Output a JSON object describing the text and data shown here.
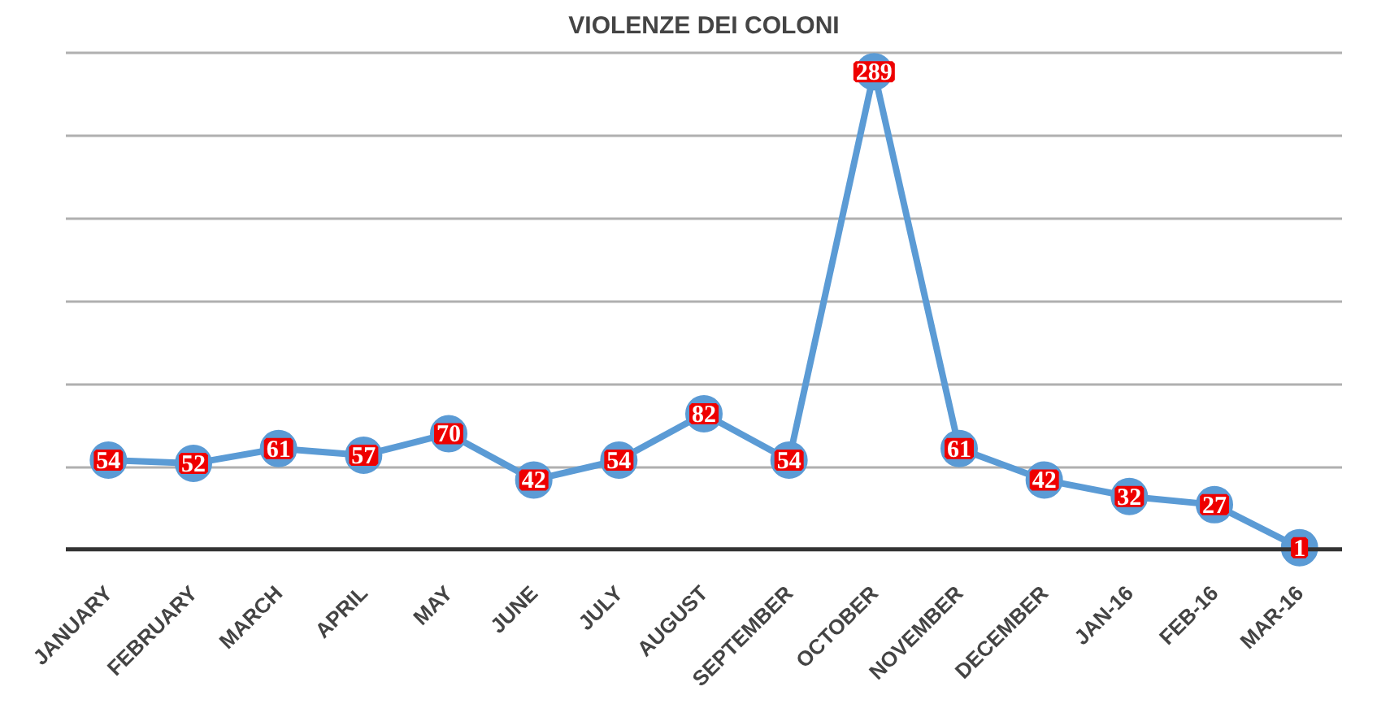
{
  "chart_data": {
    "type": "line",
    "title": "VIOLENZE DEI COLONI",
    "categories": [
      "JANUARY",
      "FEBRUARY",
      "MARCH",
      "APRIL",
      "MAY",
      "JUNE",
      "JULY",
      "AUGUST",
      "SEPTEMBER",
      "OCTOBER",
      "NOVEMBER",
      "DECEMBER",
      "JAN-16",
      "FEB-16",
      "MAR-16"
    ],
    "series": [
      {
        "color": "#5b9bd5",
        "values": [
          54,
          52,
          61,
          57,
          70,
          42,
          54,
          82,
          54,
          289,
          61,
          42,
          32,
          27,
          1
        ]
      }
    ],
    "yticks": [
      {
        "value": 0,
        "label": null
      },
      {
        "value": 50,
        "label": null
      },
      {
        "value": 100,
        "label": null
      },
      {
        "value": 150,
        "label": null
      },
      {
        "value": 200,
        "label": null
      },
      {
        "value": 250,
        "label": null
      },
      {
        "value": 300,
        "label": null
      }
    ],
    "grid": "y",
    "tick_labels": "x",
    "marker": "circle",
    "line_style": "solid",
    "data_labels": true
  }
}
